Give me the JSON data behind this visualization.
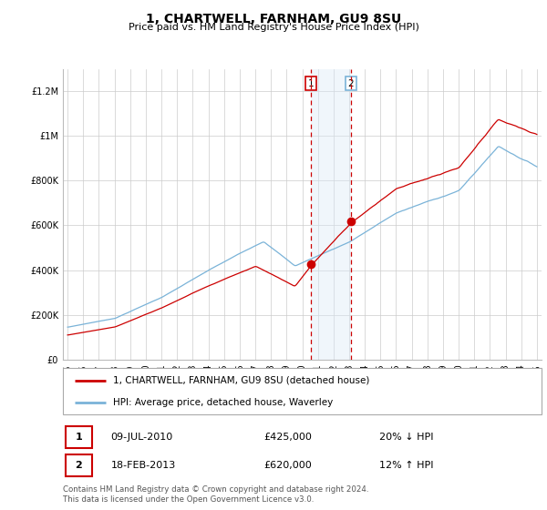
{
  "title": "1, CHARTWELL, FARNHAM, GU9 8SU",
  "subtitle": "Price paid vs. HM Land Registry's House Price Index (HPI)",
  "legend_line1": "1, CHARTWELL, FARNHAM, GU9 8SU (detached house)",
  "legend_line2": "HPI: Average price, detached house, Waverley",
  "footnote": "Contains HM Land Registry data © Crown copyright and database right 2024.\nThis data is licensed under the Open Government Licence v3.0.",
  "transaction1_label": "1",
  "transaction1_date": "09-JUL-2010",
  "transaction1_price": "£425,000",
  "transaction1_hpi": "20% ↓ HPI",
  "transaction2_label": "2",
  "transaction2_date": "18-FEB-2013",
  "transaction2_price": "£620,000",
  "transaction2_hpi": "12% ↑ HPI",
  "hpi_line_color": "#7ab3d8",
  "price_line_color": "#cc0000",
  "marker_color": "#cc0000",
  "shaded_region_color": "#daeaf7",
  "vline_color": "#cc0000",
  "ylim_min": 0,
  "ylim_max": 1300000,
  "yticks": [
    0,
    200000,
    400000,
    600000,
    800000,
    1000000,
    1200000
  ],
  "ytick_labels": [
    "£0",
    "£200K",
    "£400K",
    "£600K",
    "£800K",
    "£1M",
    "£1.2M"
  ],
  "year_start": 1995,
  "year_end": 2025,
  "transaction1_year": 2010.54,
  "transaction2_year": 2013.12,
  "transaction1_value": 425000,
  "transaction2_value": 620000,
  "background_color": "#ffffff",
  "plot_bg_color": "#ffffff",
  "grid_color": "#cccccc",
  "title_fontsize": 10,
  "subtitle_fontsize": 8,
  "tick_fontsize": 7,
  "legend_fontsize": 7.5,
  "table_fontsize": 8
}
